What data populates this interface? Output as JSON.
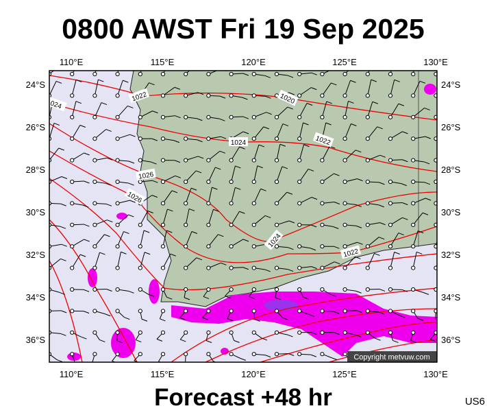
{
  "title": "0800 AWST Fri 19 Sep 2025",
  "forecast": "Forecast +48 hr",
  "code": "US6",
  "copyright": "Copyright metvuw.com",
  "lon_labels": [
    "110°E",
    "115°E",
    "120°E",
    "125°E",
    "130°E"
  ],
  "lat_labels": [
    "24°S",
    "26°S",
    "28°S",
    "30°S",
    "32°S",
    "34°S",
    "36°S"
  ],
  "isobar_labels": [
    "1022",
    "1020",
    "1024",
    "1022",
    "024",
    "1026",
    "1026",
    "1024",
    "1022"
  ]
}
